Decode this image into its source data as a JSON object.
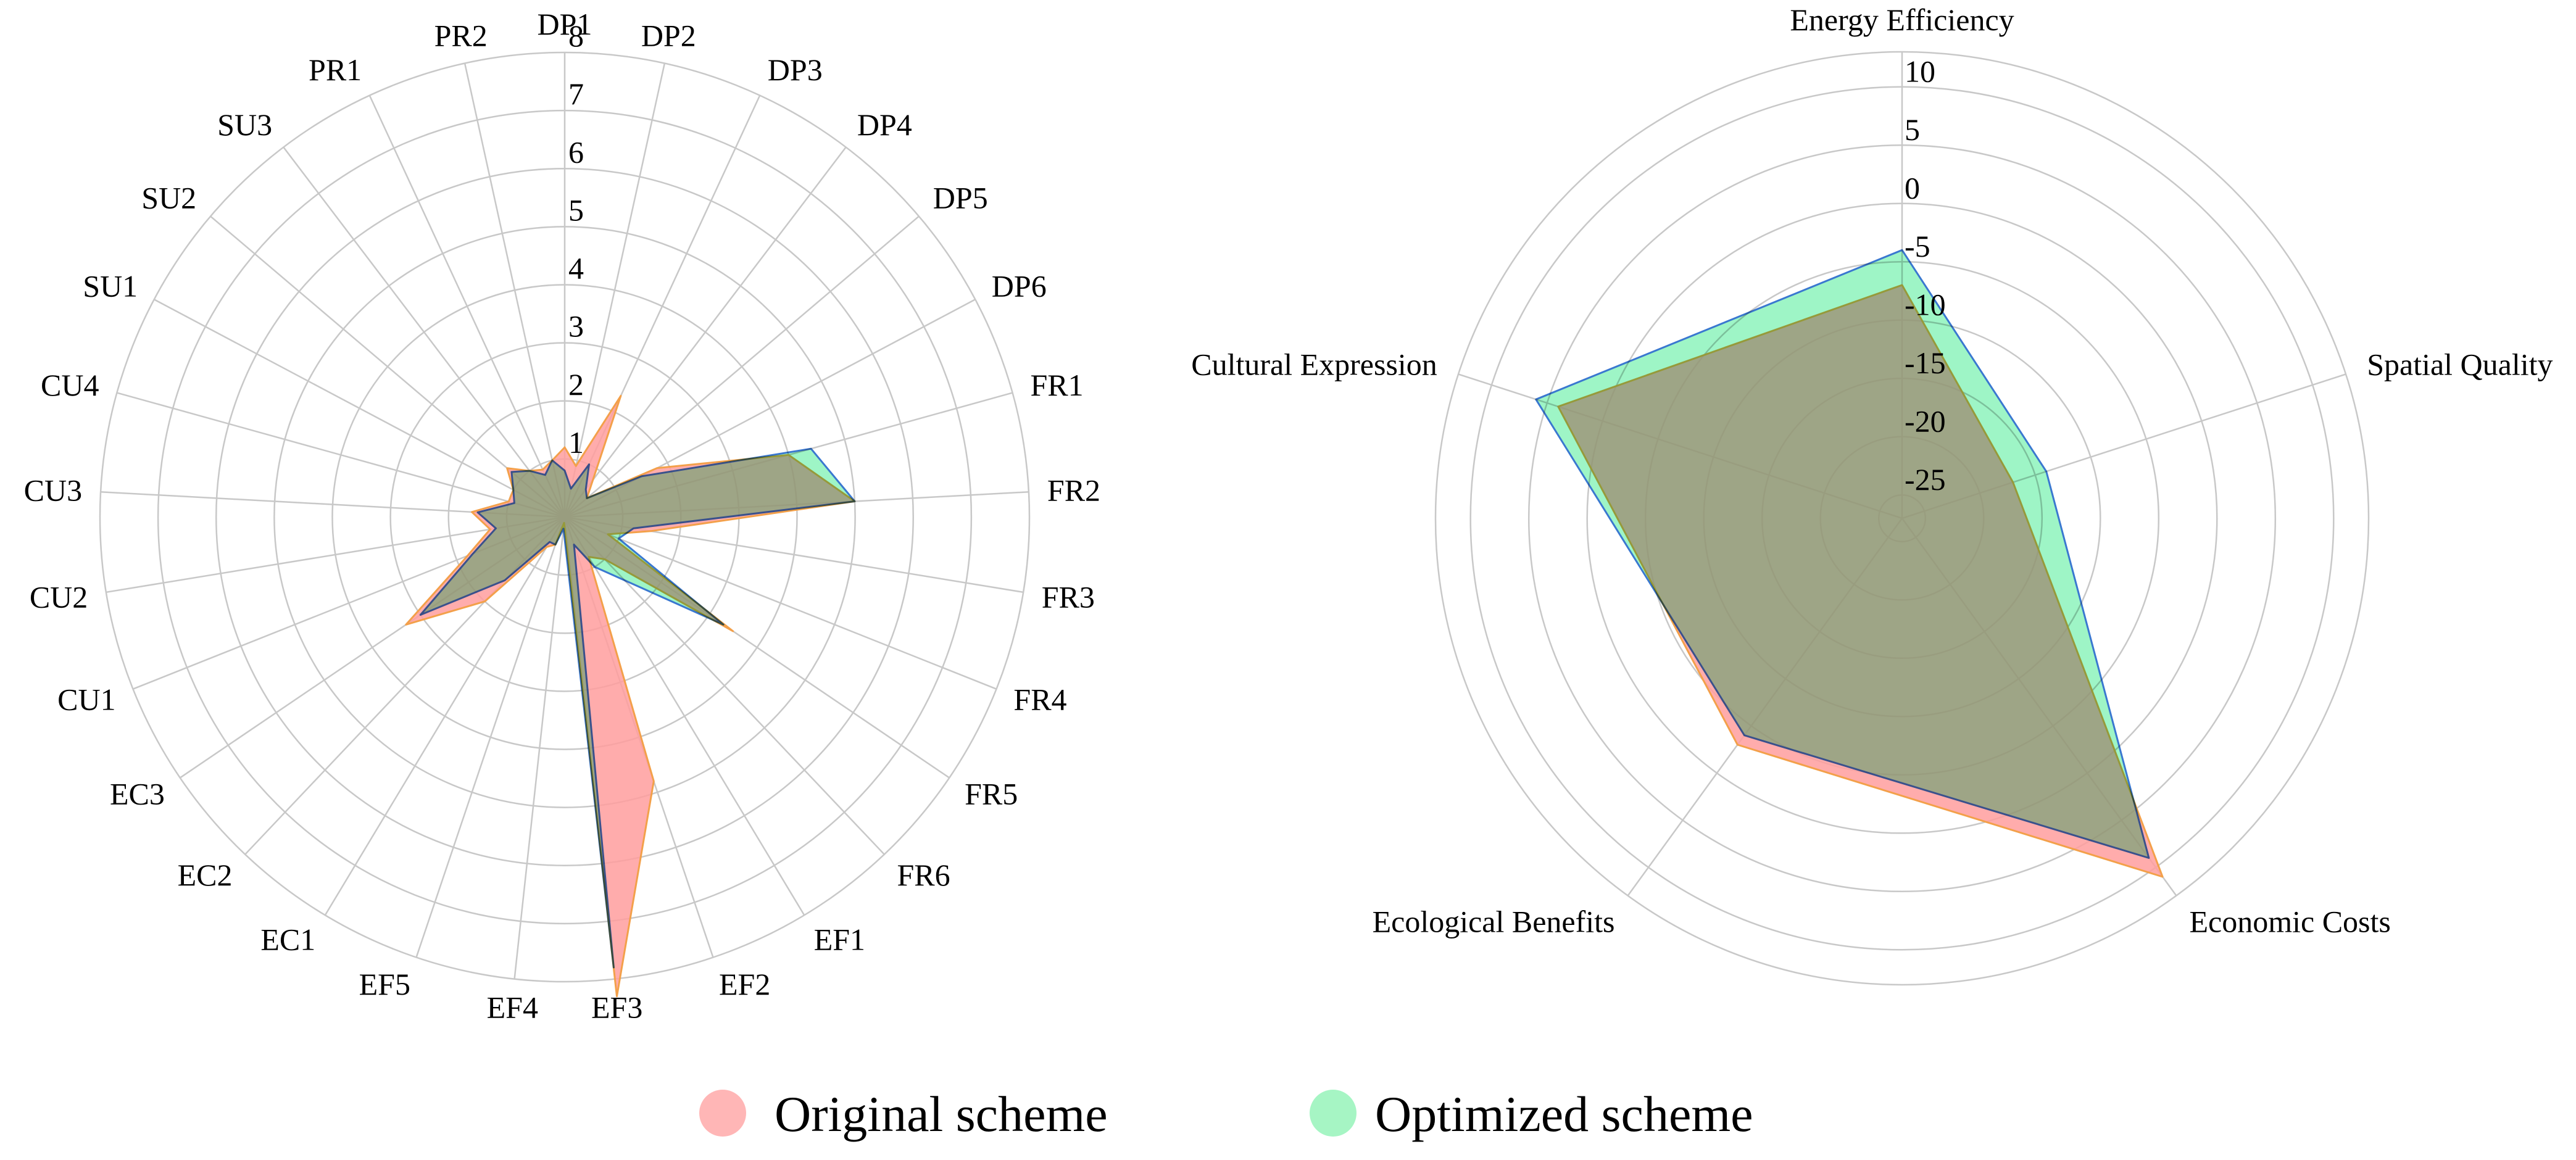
{
  "chart_data": [
    {
      "type": "radar",
      "rlim": [
        0,
        8
      ],
      "ticks": [
        1,
        2,
        3,
        4,
        5,
        6,
        7,
        8
      ],
      "axes": [
        "DP1",
        "DP2",
        "DP3",
        "DP4",
        "DP5",
        "DP6",
        "FR1",
        "FR2",
        "FR3",
        "FR4",
        "FR5",
        "FR6",
        "EF1",
        "EF2",
        "EF3",
        "EF4",
        "EF5",
        "EC1",
        "EC2",
        "EC3",
        "CU1",
        "CU2",
        "CU3",
        "CU4",
        "SU1",
        "SU2",
        "SU3",
        "PR1",
        "PR2"
      ],
      "series": [
        {
          "name": "Original scheme",
          "values": [
            1.2,
            0.9,
            2.3,
            0.8,
            0.5,
            1.8,
            4.0,
            5.0,
            1.5,
            0.8,
            3.5,
            1.0,
            0.8,
            4.8,
            8.3,
            0.1,
            0.5,
            0.6,
            2.0,
            3.3,
            1.8,
            1.3,
            1.6,
            1.0,
            1.0,
            1.3,
            1.0,
            0.9,
            1.0
          ]
        },
        {
          "name": "Optimized scheme",
          "values": [
            0.8,
            0.5,
            1.0,
            0.6,
            0.5,
            1.5,
            4.4,
            5.0,
            1.2,
            1.0,
            3.3,
            1.5,
            1.0,
            0.5,
            7.8,
            0.2,
            0.5,
            0.5,
            1.5,
            3.0,
            1.7,
            1.2,
            1.5,
            0.9,
            1.0,
            1.2,
            1.0,
            0.8,
            1.0
          ]
        }
      ]
    },
    {
      "type": "radar",
      "rlim": [
        -27,
        13
      ],
      "ticks": [
        -25,
        -20,
        -15,
        -10,
        -5,
        0,
        5,
        10
      ],
      "axes": [
        "Energy Efficiency",
        "Spatial Quality",
        "Economic Costs",
        "Ecological Benefits",
        "Cultural Expression"
      ],
      "series": [
        {
          "name": "Original scheme",
          "values": [
            -7,
            -17,
            11,
            -3,
            4
          ]
        },
        {
          "name": "Optimized scheme",
          "values": [
            -4,
            -14,
            9,
            -4,
            6
          ]
        }
      ]
    }
  ],
  "legend": {
    "items": [
      {
        "label": "Original scheme",
        "color": "#ffb6b6"
      },
      {
        "label": "Optimized scheme",
        "color": "#7ef0a8"
      }
    ]
  },
  "colors": {
    "original_fill": "#ff9e9e",
    "optimized_fill": "#5eeea0",
    "original_stroke": "#f3a04a",
    "optimized_stroke": "#3a78d0",
    "overlap_fill": "#a8c878"
  }
}
